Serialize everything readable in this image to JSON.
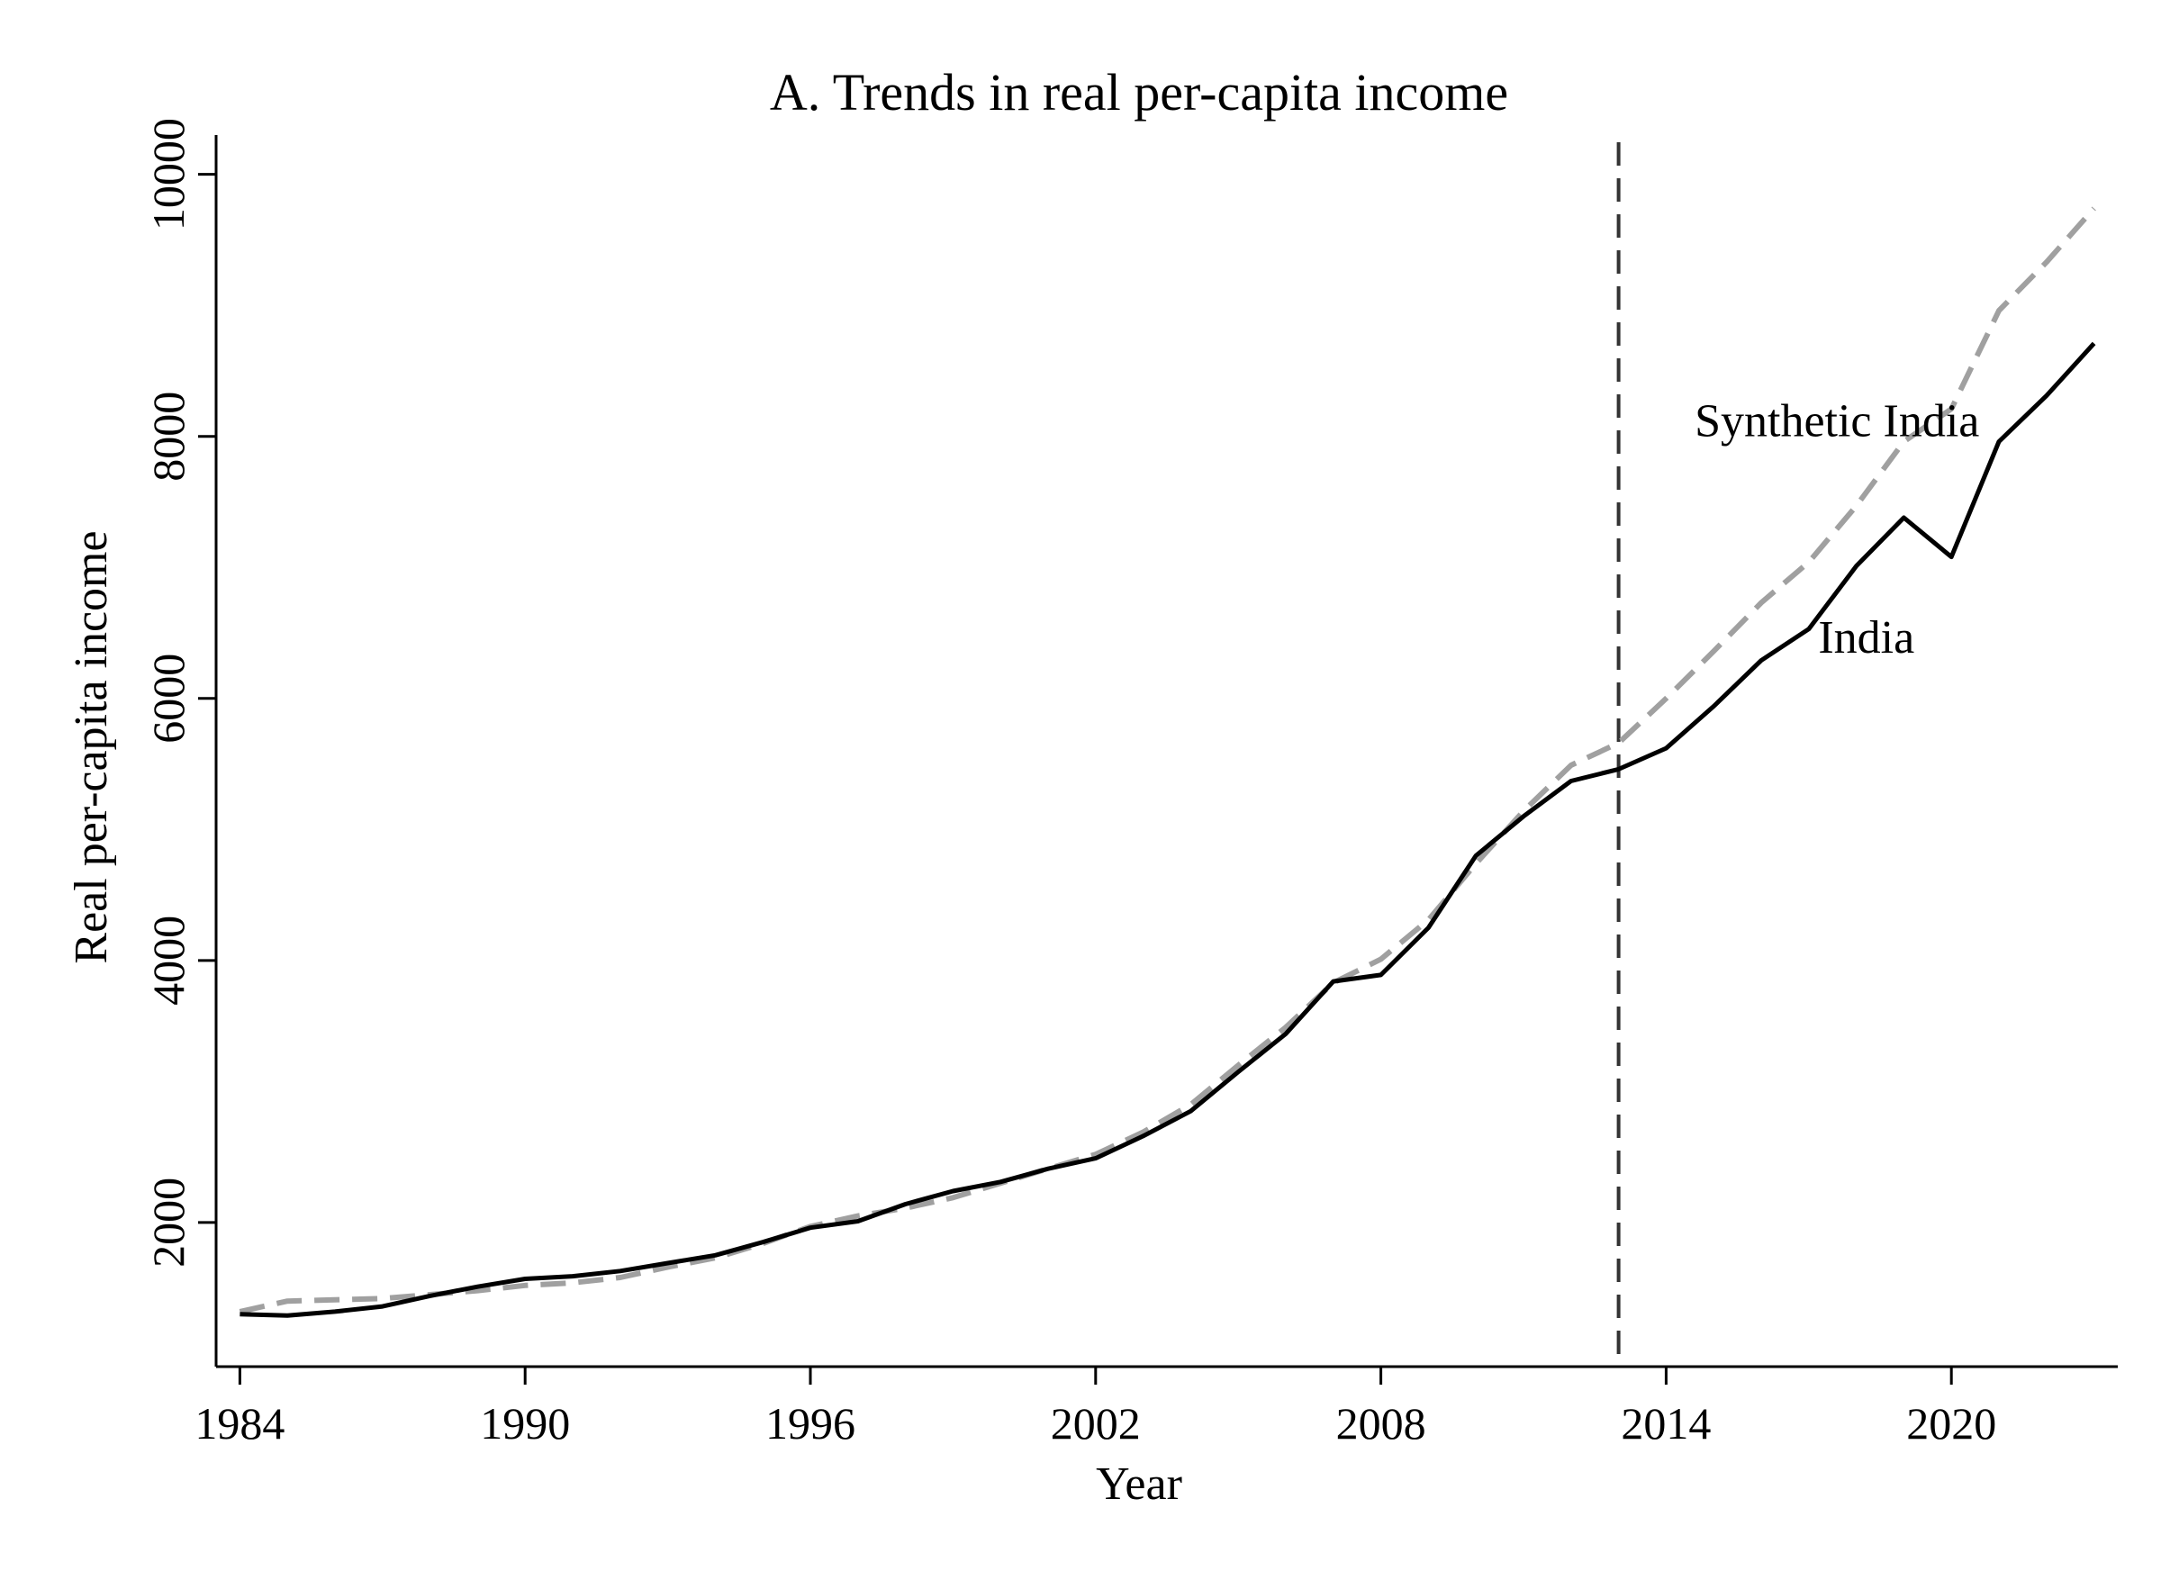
{
  "chart_data": {
    "type": "line",
    "title": "A. Trends in real per-capita income",
    "xlabel": "Year",
    "ylabel": "Real per-capita income",
    "xlim": [
      1983.5,
      2023.5
    ],
    "ylim": [
      900,
      10300
    ],
    "xticks": [
      1984,
      1990,
      1996,
      2002,
      2008,
      2014,
      2020
    ],
    "yticks": [
      2000,
      4000,
      6000,
      8000,
      10000
    ],
    "grid": false,
    "legend": "none",
    "treatment_year": 2013,
    "x": [
      1984,
      1985,
      1986,
      1987,
      1988,
      1989,
      1990,
      1991,
      1992,
      1993,
      1994,
      1995,
      1996,
      1997,
      1998,
      1999,
      2000,
      2001,
      2002,
      2003,
      2004,
      2005,
      2006,
      2007,
      2008,
      2009,
      2010,
      2011,
      2012,
      2013,
      2014,
      2015,
      2016,
      2017,
      2018,
      2019,
      2020,
      2021,
      2022,
      2023
    ],
    "series": [
      {
        "name": "India",
        "style": "solid",
        "color": "#000000",
        "values": [
          1300,
          1290,
          1320,
          1360,
          1440,
          1510,
          1570,
          1590,
          1630,
          1690,
          1750,
          1850,
          1960,
          2010,
          2140,
          2240,
          2310,
          2410,
          2490,
          2660,
          2850,
          3150,
          3440,
          3840,
          3890,
          4250,
          4800,
          5100,
          5370,
          5460,
          5620,
          5940,
          6290,
          6530,
          7010,
          7380,
          7080,
          7960,
          8310,
          8710
        ]
      },
      {
        "name": "Synthetic India",
        "style": "dashed",
        "color": "#a0a0a0",
        "values": [
          1320,
          1400,
          1410,
          1420,
          1450,
          1480,
          1520,
          1540,
          1580,
          1660,
          1730,
          1840,
          1970,
          2050,
          2110,
          2190,
          2300,
          2410,
          2520,
          2690,
          2900,
          3200,
          3490,
          3830,
          4010,
          4310,
          4740,
          5140,
          5490,
          5660,
          6000,
          6360,
          6730,
          7040,
          7470,
          7960,
          8210,
          8960,
          9330,
          9740
        ]
      }
    ],
    "annotations": [
      {
        "text": "Synthetic India",
        "x": 2014.6,
        "y": 8000
      },
      {
        "text": "India",
        "x": 2017.2,
        "y": 6350
      }
    ]
  }
}
